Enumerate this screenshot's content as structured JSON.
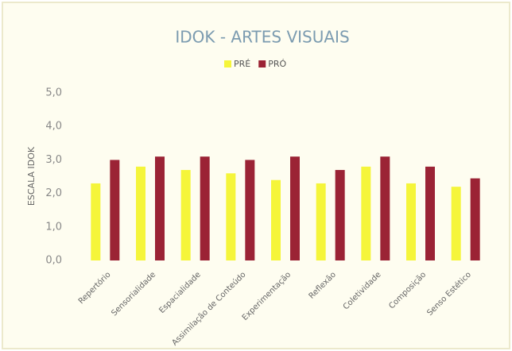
{
  "chart_data": {
    "type": "bar",
    "title": "IDOK - ARTES VISUAIS",
    "y_label": "ESCALA IDOK",
    "categories": [
      "Repertório",
      "Sensorialidade",
      "Espacialidade",
      "Assimilação de Conteúdo",
      "Experimentação",
      "Reflexão",
      "Coletividade",
      "Composição",
      "Senso Estético"
    ],
    "series": [
      {
        "name": "PRÉ",
        "color": "#f5f53a",
        "values": [
          2.3,
          2.8,
          2.7,
          2.6,
          2.4,
          2.3,
          2.8,
          2.3,
          2.2
        ]
      },
      {
        "name": "PRÓ",
        "color": "#9b2335",
        "values": [
          3.0,
          3.1,
          3.1,
          3.0,
          3.1,
          2.7,
          3.1,
          2.8,
          2.45
        ]
      }
    ],
    "ylim": [
      0,
      5
    ],
    "yticks": [
      {
        "value": 0,
        "label": "0,0"
      },
      {
        "value": 1,
        "label": "1,0"
      },
      {
        "value": 2,
        "label": "2,0"
      },
      {
        "value": 3,
        "label": "3,0"
      },
      {
        "value": 4,
        "label": "4,0"
      },
      {
        "value": 5,
        "label": "5,0"
      }
    ],
    "legend": "top"
  }
}
